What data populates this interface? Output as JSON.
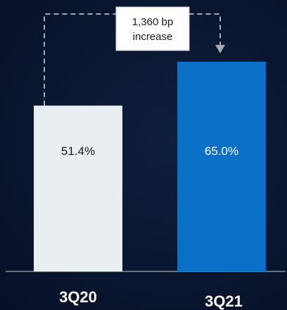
{
  "chart_data": {
    "type": "bar",
    "categories": [
      "3Q20",
      "3Q21"
    ],
    "values": [
      51.4,
      65.0
    ],
    "value_labels": [
      "51.4%",
      "65.0%"
    ],
    "annotation": {
      "line1": "1,360 bp",
      "line2": "increase"
    },
    "ylim": [
      0,
      70
    ],
    "grid": false,
    "legend": "none",
    "colors": {
      "bars": [
        "#e9eef2",
        "#0a6fc6"
      ],
      "value_text": [
        "#1a1a1a",
        "#ffffff"
      ],
      "connector": "#a8acb3",
      "baseline": "#8a8f98"
    }
  }
}
